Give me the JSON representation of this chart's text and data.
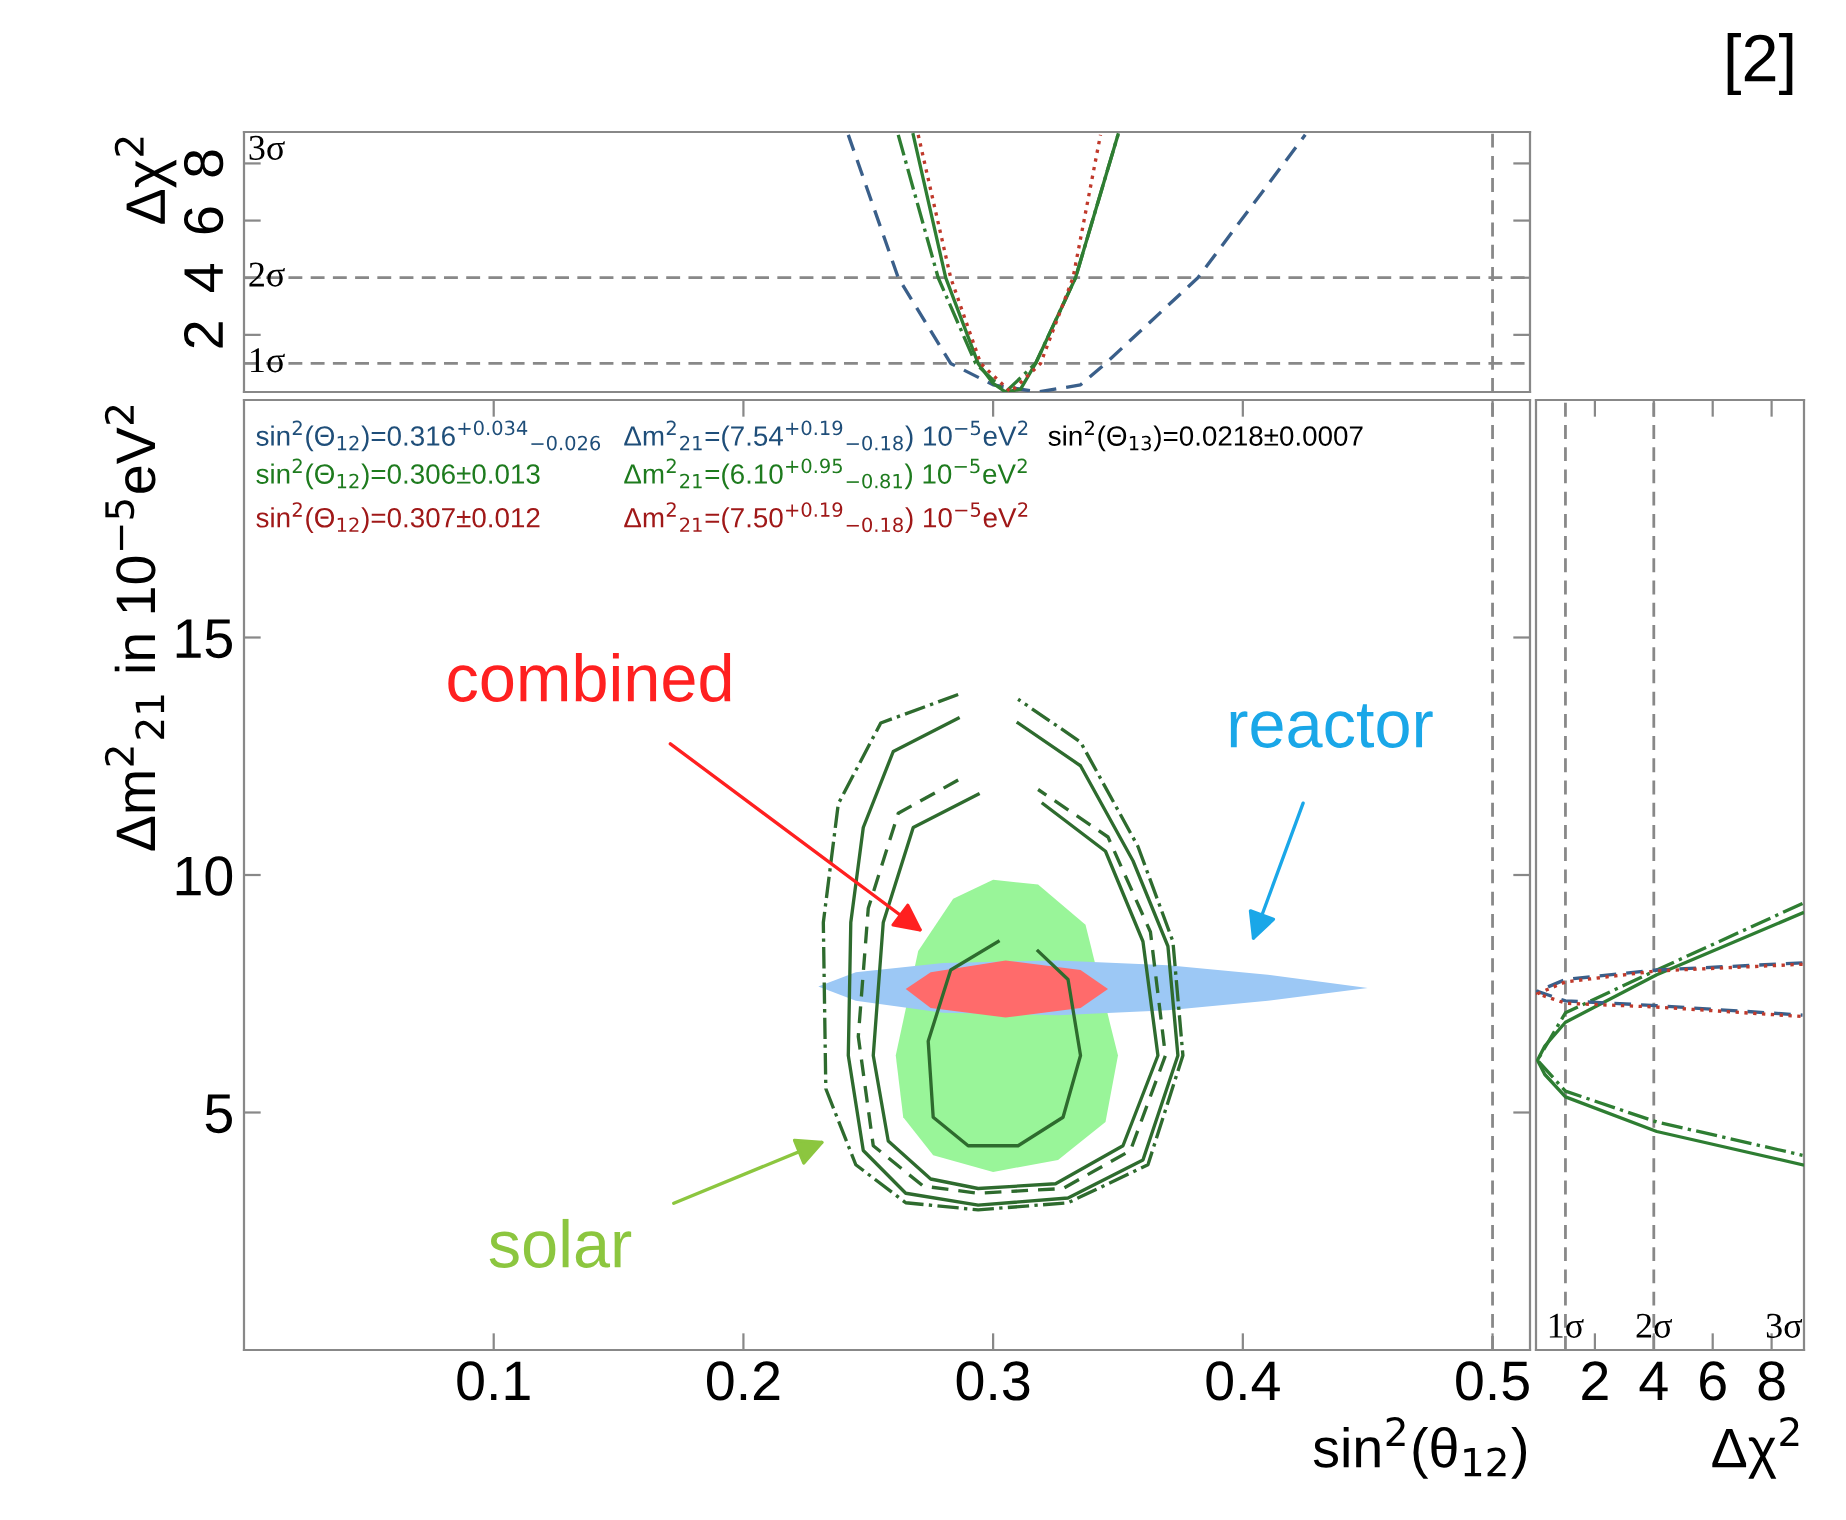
{
  "chart_data": [
    {
      "type": "line",
      "ylabel": "Δχ$^{2}$",
      "xlim": [
        0,
        0.515
      ],
      "ylim": [
        0,
        9.1
      ],
      "yticks": [
        2,
        4,
        6,
        8
      ],
      "tick_labels": "y",
      "legend": false,
      "grid": false,
      "series": [
        {
          "x": [
            0.242,
            0.262,
            0.283,
            0.3,
            0.318,
            0.335,
            0.345,
            0.382,
            0.425
          ],
          "values": [
            9,
            4,
            1,
            0.25,
            0,
            0.25,
            1,
            4,
            9
          ],
          "color": "#3a5f8a",
          "line_style": "dashed"
        },
        {
          "x": [
            0.268,
            0.281,
            0.294,
            0.3,
            0.305,
            0.311,
            0.317,
            0.333,
            0.35
          ],
          "values": [
            9,
            4,
            1,
            0.3,
            0,
            0.1,
            1,
            4,
            9
          ],
          "color": "#2e7d32",
          "line_style": "solid"
        },
        {
          "x": [
            0.262,
            0.278,
            0.293,
            0.305,
            0.317,
            0.333,
            0.35
          ],
          "values": [
            9,
            4,
            1,
            0,
            1,
            4,
            9
          ],
          "color": "#2e7d32",
          "line_style": "dashdot"
        },
        {
          "x": [
            0.27,
            0.283,
            0.295,
            0.307,
            0.319,
            0.332,
            0.343
          ],
          "values": [
            9,
            4,
            1,
            0,
            1,
            4,
            9
          ],
          "color": "#c0392b",
          "line_style": "dotted"
        }
      ],
      "ref_lines": [
        {
          "axis": "y",
          "value": 1,
          "label": "1σ",
          "line_style": "dashed"
        },
        {
          "axis": "y",
          "value": 4,
          "label": "2σ",
          "line_style": "dashed"
        },
        {
          "axis": "x",
          "value": 0.5,
          "line_style": "dashed"
        }
      ],
      "annotations": [
        "3σ",
        "[2]"
      ]
    },
    {
      "type": "line",
      "xlabel": "sin$^{2}$(θ$_{12}$)",
      "ylabel": "Δm$^{2}$$_{21}$ in 10$^{−5}$eV$^{2}$",
      "xlim": [
        0,
        0.515
      ],
      "ylim": [
        0,
        20
      ],
      "xticks": [
        0.1,
        0.2,
        0.3,
        0.4,
        0.5
      ],
      "yticks": [
        5,
        10,
        15
      ],
      "legend": false,
      "grid": false,
      "series": [
        {
          "type": "area",
          "x": [
            0.3,
            0.284,
            0.27,
            0.261,
            0.264,
            0.276,
            0.3,
            0.326,
            0.345,
            0.35,
            0.337,
            0.318
          ],
          "values": [
            9.9,
            9.5,
            8.4,
            6.2,
            4.9,
            4.1,
            3.75,
            4.0,
            4.8,
            6.2,
            8.95,
            9.8
          ],
          "color": "#99f599"
        },
        {
          "type": "area",
          "x": [
            0.23,
            0.245,
            0.28,
            0.326,
            0.37,
            0.41,
            0.45,
            0.41,
            0.37,
            0.326,
            0.28,
            0.245
          ],
          "values": [
            7.65,
            7.95,
            8.15,
            8.2,
            8.1,
            7.9,
            7.62,
            7.35,
            7.15,
            7.05,
            7.1,
            7.35
          ],
          "color": "#9cc8f5"
        },
        {
          "type": "area",
          "x": [
            0.265,
            0.275,
            0.305,
            0.335,
            0.346,
            0.335,
            0.305,
            0.275
          ],
          "values": [
            7.6,
            7.95,
            8.2,
            8.0,
            7.6,
            7.2,
            7.0,
            7.2
          ],
          "color": "#ff6b6b"
        },
        {
          "type": "line",
          "x": [
            0.286,
            0.26,
            0.248,
            0.243,
            0.242,
            0.248,
            0.265,
            0.294,
            0.33,
            0.36,
            0.374,
            0.37,
            0.356,
            0.335,
            0.31
          ],
          "values": [
            13.3,
            12.6,
            11,
            9,
            6.2,
            4.2,
            3.3,
            3.05,
            3.2,
            4.0,
            6.2,
            8.5,
            10.3,
            12.3,
            13.2
          ],
          "color": "#2e6b2e",
          "line_style": "solid"
        },
        {
          "type": "line",
          "x": [
            0.286,
            0.255,
            0.238,
            0.232,
            0.233,
            0.245,
            0.265,
            0.294,
            0.33,
            0.362,
            0.376,
            0.372,
            0.358,
            0.335,
            0.31
          ],
          "values": [
            13.8,
            13.2,
            11.5,
            9.0,
            5.5,
            3.9,
            3.1,
            2.95,
            3.1,
            3.9,
            6.2,
            8.6,
            10.6,
            12.8,
            13.7
          ],
          "color": "#2e6b2e",
          "line_style": "dashdot"
        },
        {
          "type": "line",
          "x": [
            0.294,
            0.268,
            0.256,
            0.252,
            0.258,
            0.275,
            0.294,
            0.325,
            0.352,
            0.366,
            0.36,
            0.345,
            0.32
          ],
          "values": [
            11.7,
            11.0,
            9.0,
            6.2,
            4.4,
            3.6,
            3.4,
            3.5,
            4.3,
            6.2,
            8.6,
            10.5,
            11.5
          ],
          "color": "#2e6b2e",
          "line_style": "solid"
        },
        {
          "type": "line",
          "x": [
            0.286,
            0.262,
            0.25,
            0.246,
            0.252,
            0.272,
            0.294,
            0.328,
            0.355,
            0.369,
            0.363,
            0.346,
            0.318
          ],
          "values": [
            12.0,
            11.3,
            9.3,
            6.6,
            4.3,
            3.45,
            3.3,
            3.4,
            4.2,
            6.2,
            8.8,
            10.8,
            11.8
          ],
          "color": "#2e6b2e",
          "line_style": "dashed"
        },
        {
          "type": "line",
          "x": [
            0.302,
            0.283,
            0.274,
            0.276,
            0.29,
            0.31,
            0.328,
            0.335,
            0.33,
            0.318
          ],
          "values": [
            8.6,
            8.0,
            6.5,
            4.9,
            4.3,
            4.3,
            4.9,
            6.2,
            7.8,
            8.4
          ],
          "color": "#2e6b2e",
          "line_style": "solid"
        }
      ],
      "ref_lines": [
        {
          "axis": "x",
          "value": 0.5,
          "line_style": "dashed"
        }
      ],
      "annotations": [
        "sin$^{2}$(Θ$_{12}$)=0.316$^{+0.034}$$_{−0.026}$",
        "Δm$^{2}$$_{21}$=(7.54$^{+0.19}$$_{−0.18}$) 10$^{−5}$eV$^{2}$",
        "sin$^{2}$(Θ$_{13}$)=0.0218±0.0007",
        "sin$^{2}$(Θ$_{12}$)=0.306±0.013",
        "Δm$^{2}$$_{21}$=(6.10$^{+0.95}$$_{−0.81}$) 10$^{−5}$eV$^{2}$",
        "sin$^{2}$(Θ$_{12}$)=0.307±0.012",
        "Δm$^{2}$$_{21}$=(7.50$^{+0.19}$$_{−0.18}$) 10$^{−5}$eV$^{2}$",
        "combined",
        "reactor",
        "solar"
      ]
    },
    {
      "type": "line",
      "xlabel": "Δχ$^{2}$",
      "xlim": [
        0,
        9.1
      ],
      "ylim": [
        0,
        20
      ],
      "xticks": [
        2,
        4,
        6,
        8
      ],
      "tick_labels": "x",
      "legend": false,
      "grid": false,
      "series": [
        {
          "x": [
            9.05,
            4.1,
            1,
            0.3,
            0.05,
            0.3,
            1,
            4.1,
            9.05
          ],
          "values": [
            9.2,
            7.9,
            6.9,
            6.4,
            6.1,
            5.8,
            5.33,
            4.6,
            3.9
          ],
          "color": "#2e7d32",
          "line_style": "solid"
        },
        {
          "x": [
            9.05,
            4.1,
            1,
            0.05,
            1,
            4.1,
            9.05
          ],
          "values": [
            9.4,
            8.0,
            7.1,
            6.1,
            5.45,
            4.8,
            4.1
          ],
          "color": "#2e7d32",
          "line_style": "dashdot"
        },
        {
          "x": [
            9.05,
            4.1,
            1,
            0.05,
            1,
            4.1,
            9.05
          ],
          "values": [
            8.15,
            8.0,
            7.8,
            7.55,
            7.35,
            7.25,
            7.05
          ],
          "color": "#3a5f8a",
          "line_style": "dashed"
        },
        {
          "x": [
            9.05,
            4.1,
            1,
            0.05,
            1,
            4.1,
            9.05
          ],
          "values": [
            8.12,
            7.98,
            7.75,
            7.5,
            7.3,
            7.22,
            7.02
          ],
          "color": "#c0392b",
          "line_style": "dotted"
        }
      ],
      "ref_lines": [
        {
          "axis": "x",
          "value": 1,
          "label": "1σ",
          "line_style": "dashed"
        },
        {
          "axis": "x",
          "value": 4,
          "label": "2σ",
          "line_style": "dashed"
        }
      ],
      "annotations": [
        "3σ"
      ]
    }
  ]
}
